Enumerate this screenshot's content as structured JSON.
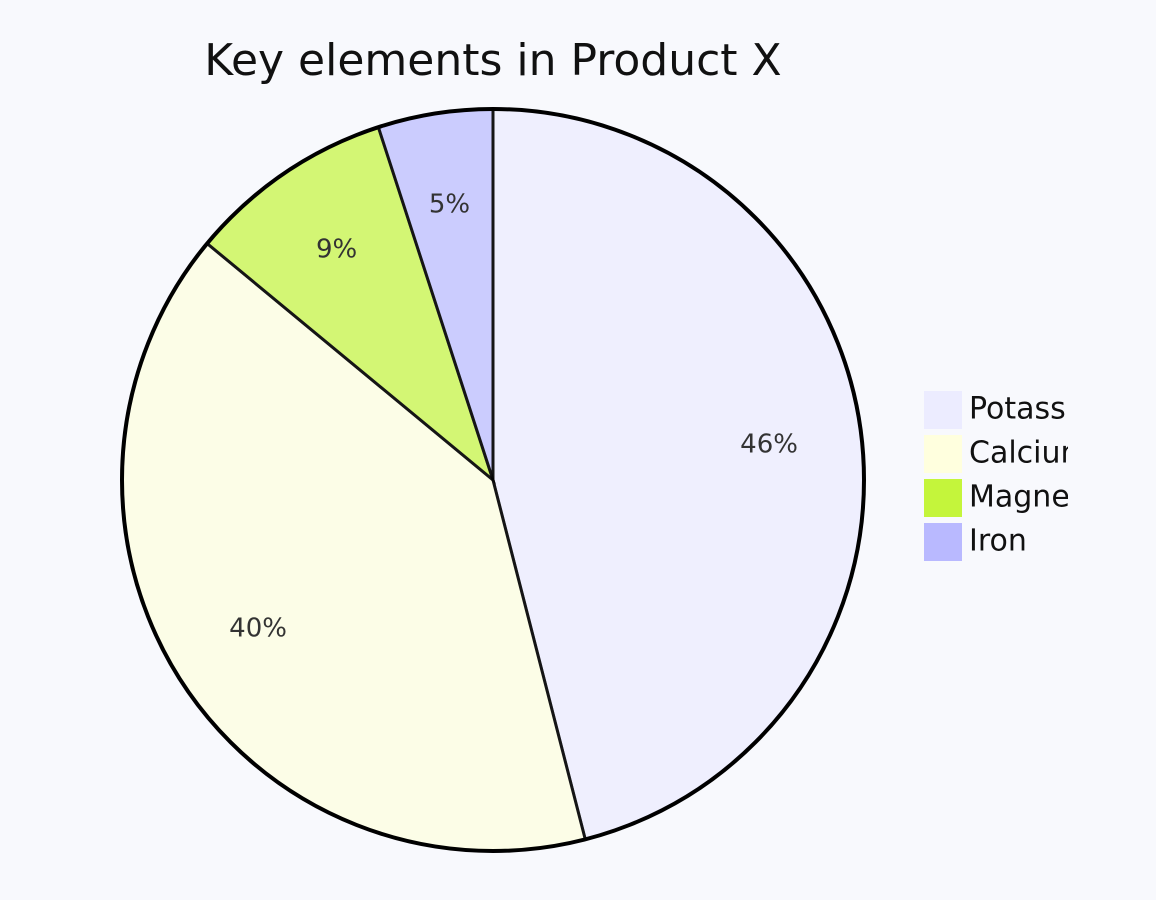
{
  "chart_data": {
    "type": "pie",
    "title": "Key elements in Product X",
    "categories": [
      "Potassium",
      "Calcium",
      "Magnesium",
      "Iron"
    ],
    "values": [
      46,
      40,
      9,
      5
    ],
    "value_labels": [
      "46%",
      "40%",
      "9%",
      "5%"
    ],
    "colors": [
      "#ececff",
      "#ffffde",
      "#c4f53b",
      "#b9b9ff"
    ]
  }
}
